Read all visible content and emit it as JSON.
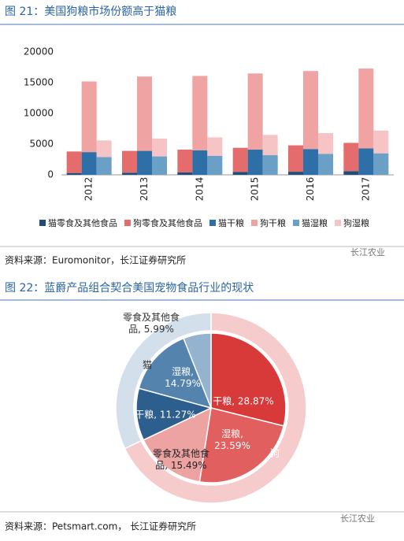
{
  "chart_data": [
    {
      "type": "bar",
      "title": "图 21：美国狗粮市场份额高于猫粮",
      "categories": [
        "2012",
        "2013",
        "2014",
        "2015",
        "2016",
        "2017"
      ],
      "series": [
        {
          "name": "猫零食及其他食品",
          "color": "#1f4e79",
          "values": [
            300,
            350,
            400,
            450,
            500,
            600
          ]
        },
        {
          "name": "狗零食及其他食品",
          "color": "#e46c6c",
          "values": [
            3500,
            3550,
            3700,
            3950,
            4300,
            4600
          ]
        },
        {
          "name": "猫干粮",
          "color": "#2e6fa8",
          "values": [
            3700,
            3900,
            4000,
            4100,
            4200,
            4300
          ]
        },
        {
          "name": "狗干粮",
          "color": "#f0a3a3",
          "values": [
            11500,
            12100,
            12100,
            12400,
            12700,
            13000
          ]
        },
        {
          "name": "猫湿粮",
          "color": "#6a9fc6",
          "values": [
            2900,
            3000,
            3100,
            3200,
            3400,
            3500
          ]
        },
        {
          "name": "狗湿粮",
          "color": "#f6c4c4",
          "values": [
            2700,
            2900,
            3000,
            3300,
            3400,
            3700
          ]
        }
      ],
      "ylim": [
        0,
        20000
      ],
      "yticks": [
        0,
        5000,
        10000,
        15000,
        20000
      ],
      "grid": false,
      "source": "资料来源：Euromonitor，长江证券研究所",
      "watermark": "长江农业"
    },
    {
      "type": "pie",
      "title": "图 22：蓝爵产品组合契合美国宠物食品行业的现状",
      "outer": {
        "categories": [
          "狗",
          "猫"
        ],
        "values": [
          68,
          32
        ],
        "colors": [
          "#f6cbcb",
          "#d3e0ec"
        ]
      },
      "inner": {
        "values": [
          28.87,
          23.59,
          15.49,
          11.27,
          14.79,
          5.99
        ],
        "value_labels": [
          "干粮, 28.87%",
          "湿粮, 23.59%",
          "零食及其他食品, 15.49%",
          "干粮, 11.27%",
          "湿粮, 14.79%",
          "零食及其他食品, 5.99%"
        ],
        "colors": [
          "#d83a3a",
          "#e25f5f",
          "#eea3a3",
          "#2c5e8e",
          "#5483ad",
          "#93b3ce"
        ]
      },
      "source": "资料来源：Petsmart.com， 长江证券研究所",
      "watermark": "长江农业"
    }
  ]
}
